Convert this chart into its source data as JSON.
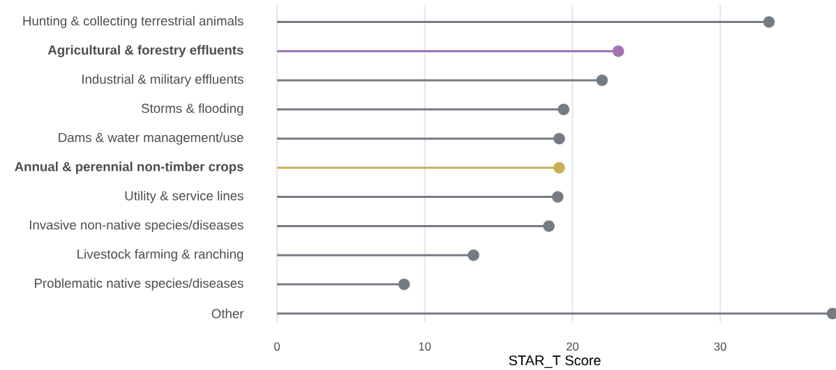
{
  "chart_data": {
    "type": "lollipop",
    "orientation": "horizontal",
    "xlabel": "STAR_T Score",
    "categories": [
      "Hunting & collecting terrestrial animals",
      "**Agricultural & forestry effluents**",
      "Industrial & military effluents",
      "Storms & flooding",
      "Dams & water management/use",
      "**Annual & perennial non-timber crops**",
      "Utility & service lines",
      "Invasive non-native species/diseases",
      "Livestock farming & ranching",
      "Problematic native species/diseases",
      "Other"
    ],
    "values": [
      33.3,
      23.1,
      22.0,
      19.4,
      19.1,
      19.1,
      19.0,
      18.4,
      13.3,
      8.6,
      37.6
    ],
    "colors": [
      "#757b83",
      "#9e72b4",
      "#757b83",
      "#757b83",
      "#757b83",
      "#c9b057",
      "#757b83",
      "#757b83",
      "#757b83",
      "#757b83",
      "#757b83"
    ],
    "xlim": [
      0,
      37.6
    ],
    "xticks": [
      0,
      10,
      20,
      30
    ],
    "grid": "x",
    "marker": "circle"
  }
}
